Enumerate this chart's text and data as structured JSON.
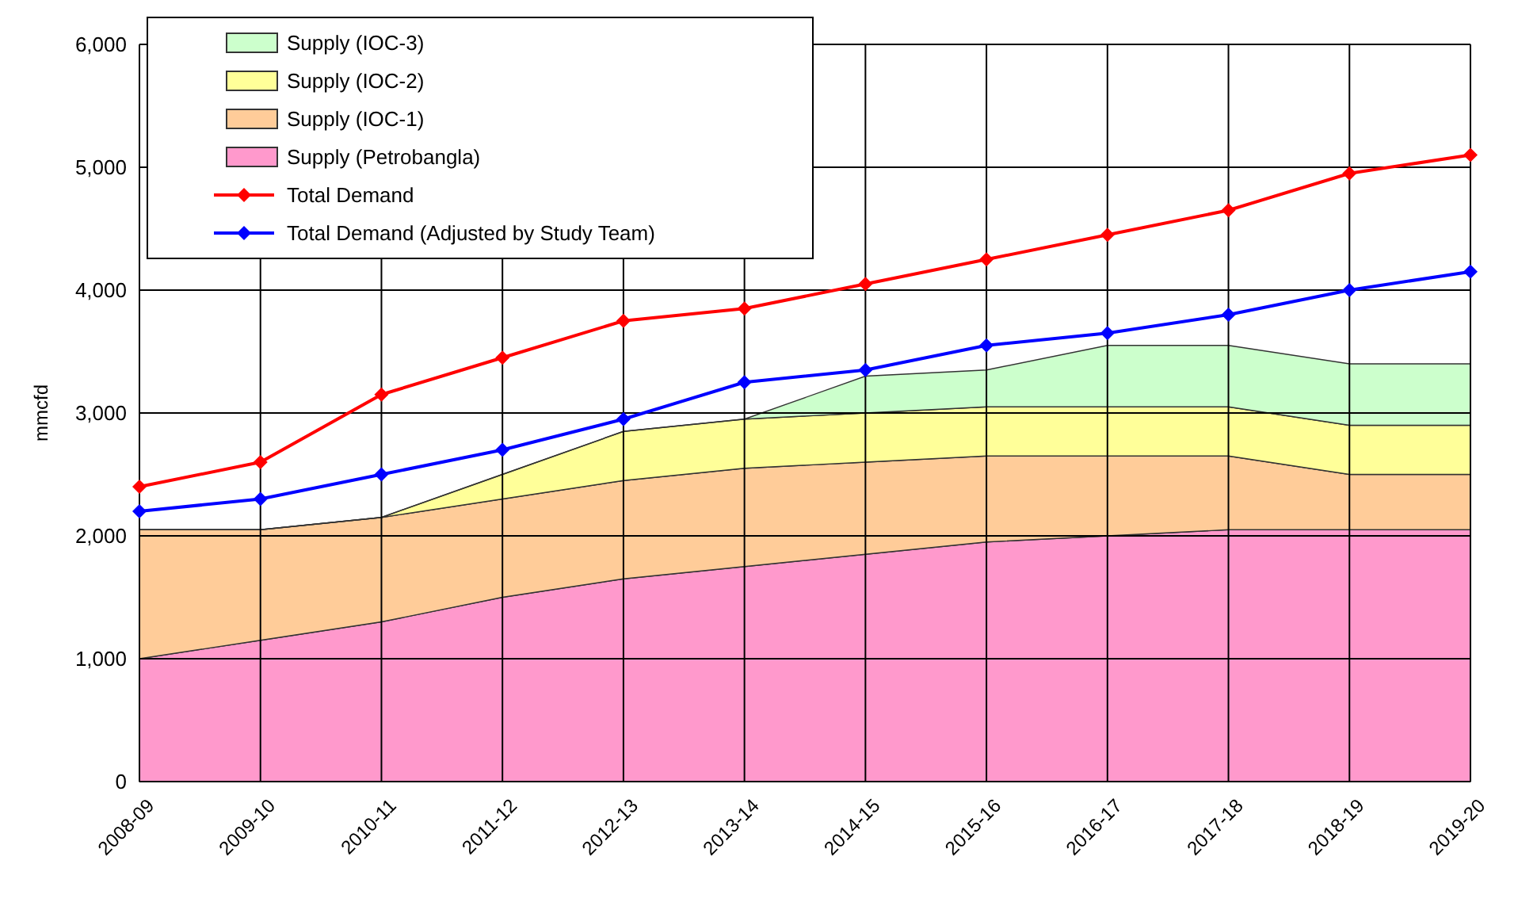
{
  "chart_data": {
    "type": "area",
    "stacked": true,
    "ylabel": "mmcfd",
    "categories": [
      "2008-09",
      "2009-10",
      "2010-11",
      "2011-12",
      "2012-13",
      "2013-14",
      "2014-15",
      "2015-16",
      "2016-17",
      "2017-18",
      "2018-19",
      "2019-20"
    ],
    "ylim": [
      0,
      6000
    ],
    "yticks": [
      {
        "value": 0,
        "label": "0"
      },
      {
        "value": 1000,
        "label": "1,000"
      },
      {
        "value": 2000,
        "label": "2,000"
      },
      {
        "value": 3000,
        "label": "3,000"
      },
      {
        "value": 4000,
        "label": "4,000"
      },
      {
        "value": 5000,
        "label": "5,000"
      },
      {
        "value": 6000,
        "label": "6,000"
      }
    ],
    "grid": true,
    "legend": "top left",
    "line_style": "solid",
    "series": [
      {
        "name": "Supply (Petrobangla)",
        "color": "#ff99cc",
        "values": [
          1000,
          1150,
          1300,
          1500,
          1650,
          1750,
          1850,
          1950,
          2000,
          2050,
          2050,
          2050
        ]
      },
      {
        "name": "Supply (IOC-1)",
        "color": "#ffcc99",
        "values": [
          1050,
          900,
          850,
          800,
          800,
          800,
          750,
          700,
          650,
          600,
          450,
          450
        ]
      },
      {
        "name": "Supply (IOC-2)",
        "color": "#ffff99",
        "values": [
          0,
          0,
          0,
          200,
          400,
          400,
          400,
          400,
          400,
          400,
          400,
          400
        ]
      },
      {
        "name": "Supply (IOC-3)",
        "color": "#ccffcc",
        "values": [
          0,
          0,
          0,
          0,
          0,
          0,
          300,
          300,
          500,
          500,
          500,
          500
        ]
      },
      {
        "name": "Total Demand",
        "type": "line",
        "marker": "diamond",
        "color": "#ff0000",
        "values": [
          2400,
          2600,
          3150,
          3450,
          3750,
          3850,
          4050,
          4250,
          4450,
          4650,
          4950,
          5100
        ]
      },
      {
        "name": "Total Demand (Adjusted by Study Team)",
        "type": "line",
        "marker": "diamond",
        "color": "#0000ff",
        "values": [
          2200,
          2300,
          2500,
          2700,
          2950,
          3250,
          3350,
          3550,
          3650,
          3800,
          4000,
          4150
        ]
      }
    ]
  }
}
